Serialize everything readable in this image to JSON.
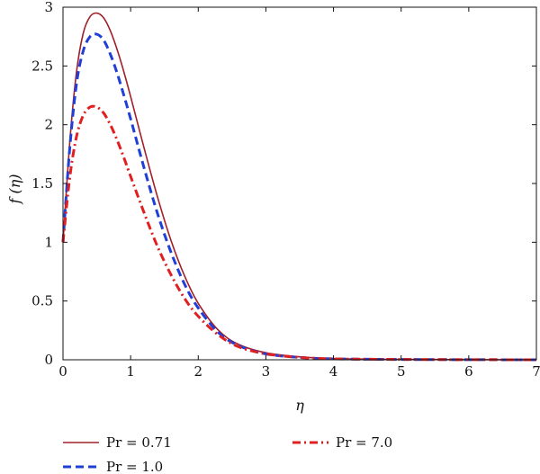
{
  "chart_data": {
    "type": "line",
    "title": "",
    "xlabel": "η",
    "ylabel": "f (η)",
    "xlim": [
      0,
      7
    ],
    "ylim": [
      0,
      3
    ],
    "x_ticks": [
      "0",
      "1",
      "2",
      "3",
      "4",
      "5",
      "6",
      "7"
    ],
    "y_ticks": [
      "0",
      "0.5",
      "1",
      "1.5",
      "2",
      "2.5",
      "3"
    ],
    "grid": false,
    "legend_placement": "bottom",
    "series": [
      {
        "name": "Pr = 0.71",
        "color": "#a0202a",
        "style": "solid",
        "x": [
          0,
          0.1,
          0.2,
          0.3,
          0.4,
          0.5,
          0.6,
          0.7,
          0.8,
          0.9,
          1.0,
          1.2,
          1.4,
          1.6,
          1.8,
          2.0,
          2.3,
          2.6,
          3.0,
          3.5,
          4.0,
          5.0,
          6.0,
          7.0
        ],
        "y": [
          1.0,
          1.85,
          2.45,
          2.78,
          2.92,
          2.95,
          2.91,
          2.8,
          2.64,
          2.45,
          2.24,
          1.8,
          1.38,
          1.01,
          0.71,
          0.48,
          0.25,
          0.13,
          0.06,
          0.025,
          0.01,
          0.003,
          0.001,
          0.0
        ]
      },
      {
        "name": "Pr = 1.0",
        "color": "#1f3fd6",
        "style": "dashed",
        "x": [
          0,
          0.1,
          0.2,
          0.3,
          0.4,
          0.5,
          0.6,
          0.7,
          0.8,
          0.9,
          1.0,
          1.2,
          1.4,
          1.6,
          1.8,
          2.0,
          2.3,
          2.6,
          3.0,
          3.5,
          4.0,
          5.0,
          6.0,
          7.0
        ],
        "y": [
          1.0,
          1.8,
          2.35,
          2.63,
          2.75,
          2.77,
          2.72,
          2.6,
          2.44,
          2.25,
          2.05,
          1.63,
          1.24,
          0.91,
          0.64,
          0.44,
          0.23,
          0.12,
          0.05,
          0.02,
          0.008,
          0.003,
          0.001,
          0.0
        ]
      },
      {
        "name": "Pr = 7.0",
        "color": "#e02020",
        "style": "dashdot",
        "x": [
          0,
          0.1,
          0.2,
          0.3,
          0.4,
          0.5,
          0.6,
          0.7,
          0.8,
          0.9,
          1.0,
          1.2,
          1.4,
          1.6,
          1.8,
          2.0,
          2.3,
          2.6,
          3.0,
          3.5,
          4.0,
          5.0,
          6.0,
          7.0
        ],
        "y": [
          1.0,
          1.55,
          1.9,
          2.08,
          2.15,
          2.15,
          2.1,
          2.0,
          1.87,
          1.72,
          1.56,
          1.25,
          0.96,
          0.72,
          0.52,
          0.37,
          0.21,
          0.11,
          0.05,
          0.02,
          0.008,
          0.003,
          0.001,
          0.0
        ]
      }
    ]
  }
}
